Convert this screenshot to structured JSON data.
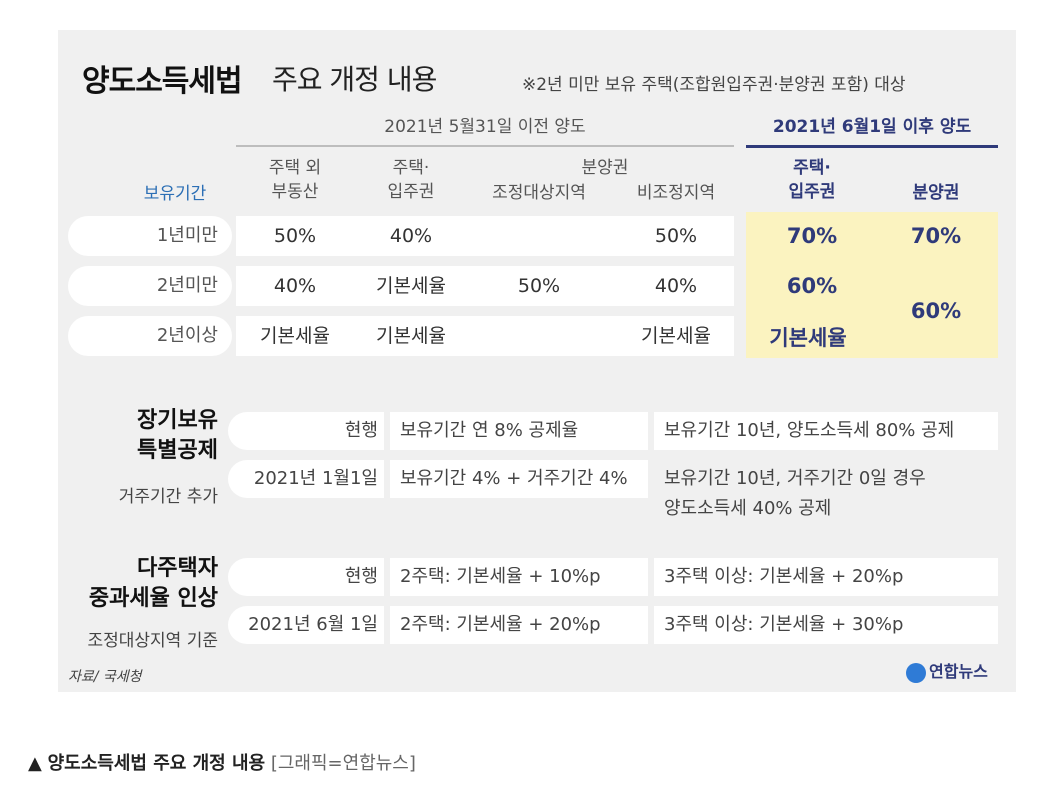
{
  "title": {
    "main": "양도소득세법",
    "sub": "주요 개정 내용",
    "note": "※2년 미만 보유 주택(조합원입주권·분양권 포함) 대상"
  },
  "table": {
    "before_header": "2021년 5월31일 이전 양도",
    "after_header": "2021년 6월1일 이후 양도",
    "col_headers": {
      "period": "보유기간",
      "other_line1": "주택 외",
      "other_line2": "부동산",
      "house_line1": "주택·",
      "house_line2": "입주권",
      "presale_group": "분양권",
      "adjusted": "조정대상지역",
      "non_adjusted": "비조정지역",
      "after_house_line1": "주택·",
      "after_house_line2": "입주권",
      "after_presale": "분양권"
    },
    "rows": [
      {
        "period": "1년미만",
        "other": "50%",
        "house": "40%",
        "adjusted": "",
        "non_adjusted": "50%",
        "after_house": "70%",
        "after_presale": "70%"
      },
      {
        "period": "2년미만",
        "other": "40%",
        "house": "기본세율",
        "adjusted": "50%",
        "non_adjusted": "40%",
        "after_house": "60%",
        "after_presale": "60%"
      },
      {
        "period": "2년이상",
        "other": "기본세율",
        "house": "기본세율",
        "adjusted": "",
        "non_adjusted": "기본세율",
        "after_house": "기본세율",
        "after_presale": ""
      }
    ]
  },
  "section_longterm": {
    "title_line1": "장기보유",
    "title_line2": "특별공제",
    "subtitle": "거주기간 추가",
    "rows": [
      {
        "when": "현행",
        "rule": "보유기간 연 8% 공제율",
        "example": "보유기간 10년, 양도소득세 80% 공제",
        "example_line2": ""
      },
      {
        "when": "2021년 1월1일",
        "rule": "보유기간 4% + 거주기간 4%",
        "example": "보유기간 10년, 거주기간 0일 경우",
        "example_line2": "양도소득세 40% 공제"
      }
    ]
  },
  "section_multi": {
    "title_line1": "다주택자",
    "title_line2": "중과세율 인상",
    "subtitle": "조정대상지역 기준",
    "rows": [
      {
        "when": "현행",
        "two": "2주택: 기본세율 + 10%p",
        "three": "3주택 이상: 기본세율 + 20%p"
      },
      {
        "when": "2021년 6월 1일",
        "two": "2주택: 기본세율 + 20%p",
        "three": "3주택 이상: 기본세율 + 30%p"
      }
    ]
  },
  "source": "자료/ 국세청",
  "logo": "연합뉴스",
  "caption": {
    "marker": "▲",
    "title": "양도소득세법 주요 개정 내용",
    "credit": "[그래픽=연합뉴스]"
  },
  "colors": {
    "accent": "#2f3a7a",
    "highlight": "#fbf3c0",
    "blue_label": "#2c6fb5"
  }
}
